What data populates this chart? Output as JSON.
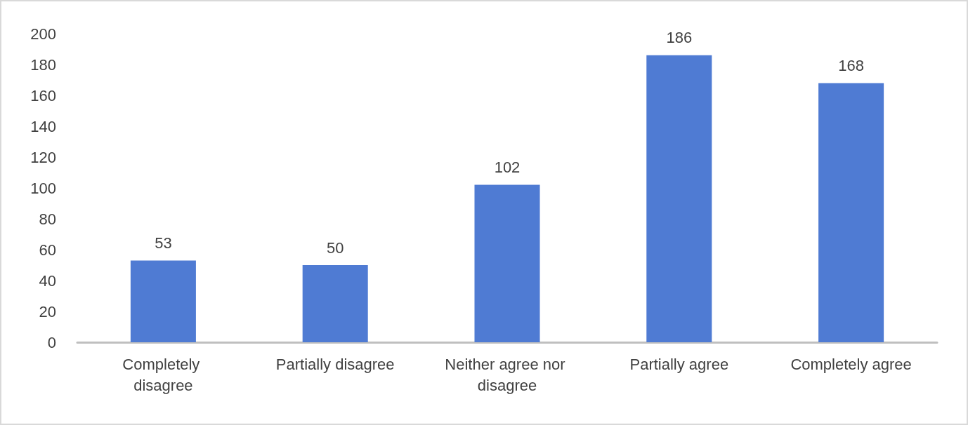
{
  "chart_data": {
    "type": "bar",
    "categories": [
      "Completely disagree",
      "Partially disagree",
      "Neither agree nor disagree",
      "Partially agree",
      "Completely agree"
    ],
    "values": [
      53,
      50,
      102,
      186,
      168
    ],
    "color": "#4f7bd3",
    "ylim": [
      0,
      200
    ],
    "yticks": [
      0,
      20,
      40,
      60,
      80,
      100,
      120,
      140,
      160,
      180,
      200
    ],
    "data_labels": true,
    "grid": false
  }
}
